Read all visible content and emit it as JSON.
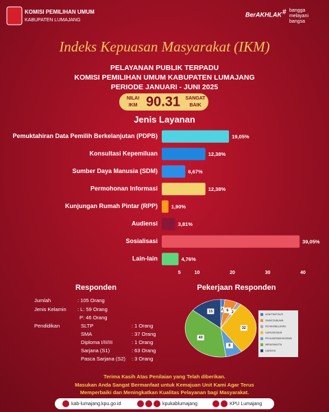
{
  "header": {
    "org": "KOMISI PEMILIHAN UMUM",
    "region": "KABUPATEN LUMAJANG",
    "brand": "BerAKHLAK",
    "tagline": [
      "bangga",
      "melayani",
      "bangsa"
    ]
  },
  "title": "Indeks Kepuasan Masyarakat (IKM)",
  "subtitle": [
    "PELAYANAN PUBLIK TERPADU",
    "KOMISI PEMILIHAN UMUM KABUPATEN LUMAJANG",
    "PERIODE  JANUARI - JUNI 2025"
  ],
  "score": {
    "label": [
      "NILAI",
      "IKM"
    ],
    "value": 90.31,
    "grade": [
      "SANGAT",
      "BAIK"
    ]
  },
  "chart_data": [
    {
      "type": "bar",
      "orientation": "horizontal",
      "title": "Jenis Layanan",
      "categories": [
        "Pemuktahiran Data Pemilih Berkelanjutan (PDPB)",
        "Konsultasi Kepemiluan",
        "Sumber Daya Manusia (SDM)",
        "Permohonan Informasi",
        "Kunjungan Rumah Pintar (RPP)",
        "Audiensi",
        "Sosialisasi",
        "Lain-lain"
      ],
      "values": [
        19.05,
        12.38,
        6.67,
        12.38,
        1.9,
        3.81,
        39.05,
        4.76
      ],
      "value_labels": [
        "19,05%",
        "12,38%",
        "6,67%",
        "12,38%",
        "1,90%",
        "3,81%",
        "39,05%",
        "4,76%"
      ],
      "colors": [
        "#4fd3e3",
        "#1f86e0",
        "#2b8fe8",
        "#f3d36f",
        "#ff9b1a",
        "#8a1638",
        "#e9525f",
        "#5ed67d"
      ],
      "xlim": [
        0,
        40
      ],
      "xticks": [
        5,
        10,
        20,
        30,
        40
      ]
    },
    {
      "type": "pie",
      "title": "Pekerjaan Responden",
      "categories": [
        "ASN/TNI/POLRI",
        "SWASTA/BUMN",
        "PETANI/NELAYAN",
        "GURU/DOSEN",
        "PELAJAR/MAHASISWA",
        "WIRASWASTA",
        "LAINNYA"
      ],
      "values": [
        2,
        6,
        2,
        32,
        8,
        40,
        15
      ],
      "colors": [
        "#4a78c8",
        "#f08a2c",
        "#a5a5a5",
        "#f5b915",
        "#5b9bd5",
        "#6ab344",
        "#264478"
      ]
    }
  ],
  "respondents": {
    "title": "Responden",
    "rows": [
      {
        "label": "Jumlah",
        "value": ": 105 Orang"
      },
      {
        "label": "Jenis Kelamin",
        "value": ": L: 59 Orang"
      },
      {
        "value": "P: 46 Orang"
      },
      {
        "label": "Pendidikan",
        "sub": "SLTP",
        "value": ": 1 Orang"
      },
      {
        "sub": "SMA",
        "value": ": 37 Orang"
      },
      {
        "sub": "Diploma I/II/III",
        "value": ": 1 Orang"
      },
      {
        "sub": "Sarjana (S1)",
        "value": ": 63 Orang"
      },
      {
        "sub": "Pasca Sarjana (S2)",
        "value": ": 3 Orang"
      }
    ]
  },
  "footer": {
    "thanks": [
      "Terima Kasih Atas Penilaian yang Telah diberikan.",
      "Masukan Anda Sangat Bermanfaat untuk Kemajuan Unit Kami Agar Terus",
      "Memperbaiki dan Meningkatkan Kualitas Pelayanan bagi Masyarakat."
    ],
    "links": [
      "kab-lumajang.kpu.go.id",
      "kpukablumajang",
      "KPU Lumajang"
    ]
  }
}
